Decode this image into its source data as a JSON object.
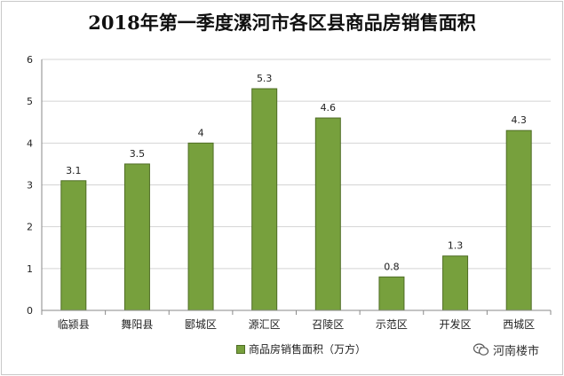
{
  "chart_data": {
    "type": "bar",
    "title": "2018年第一季度漯河市各区县商品房销售面积",
    "categories": [
      "临颍县",
      "舞阳县",
      "郾城区",
      "源汇区",
      "召陵区",
      "示范区",
      "开发区",
      "西城区"
    ],
    "series": [
      {
        "name": "商品房销售面积（万方）",
        "values": [
          3.1,
          3.5,
          4,
          5.3,
          4.6,
          0.8,
          1.3,
          4.3
        ]
      }
    ],
    "data_labels": [
      "3.1",
      "3.5",
      "4",
      "5.3",
      "4.6",
      "0.8",
      "1.3",
      "4.3"
    ],
    "y_ticks": [
      "0",
      "1",
      "2",
      "3",
      "4",
      "5",
      "6"
    ],
    "ylim": [
      0,
      6
    ],
    "grid": true,
    "legend_position": "bottom",
    "bar_color": "#77a03d",
    "bar_border_color": "#4f6d25"
  },
  "watermark": {
    "icon": "wechat-icon",
    "text": "河南楼市"
  }
}
